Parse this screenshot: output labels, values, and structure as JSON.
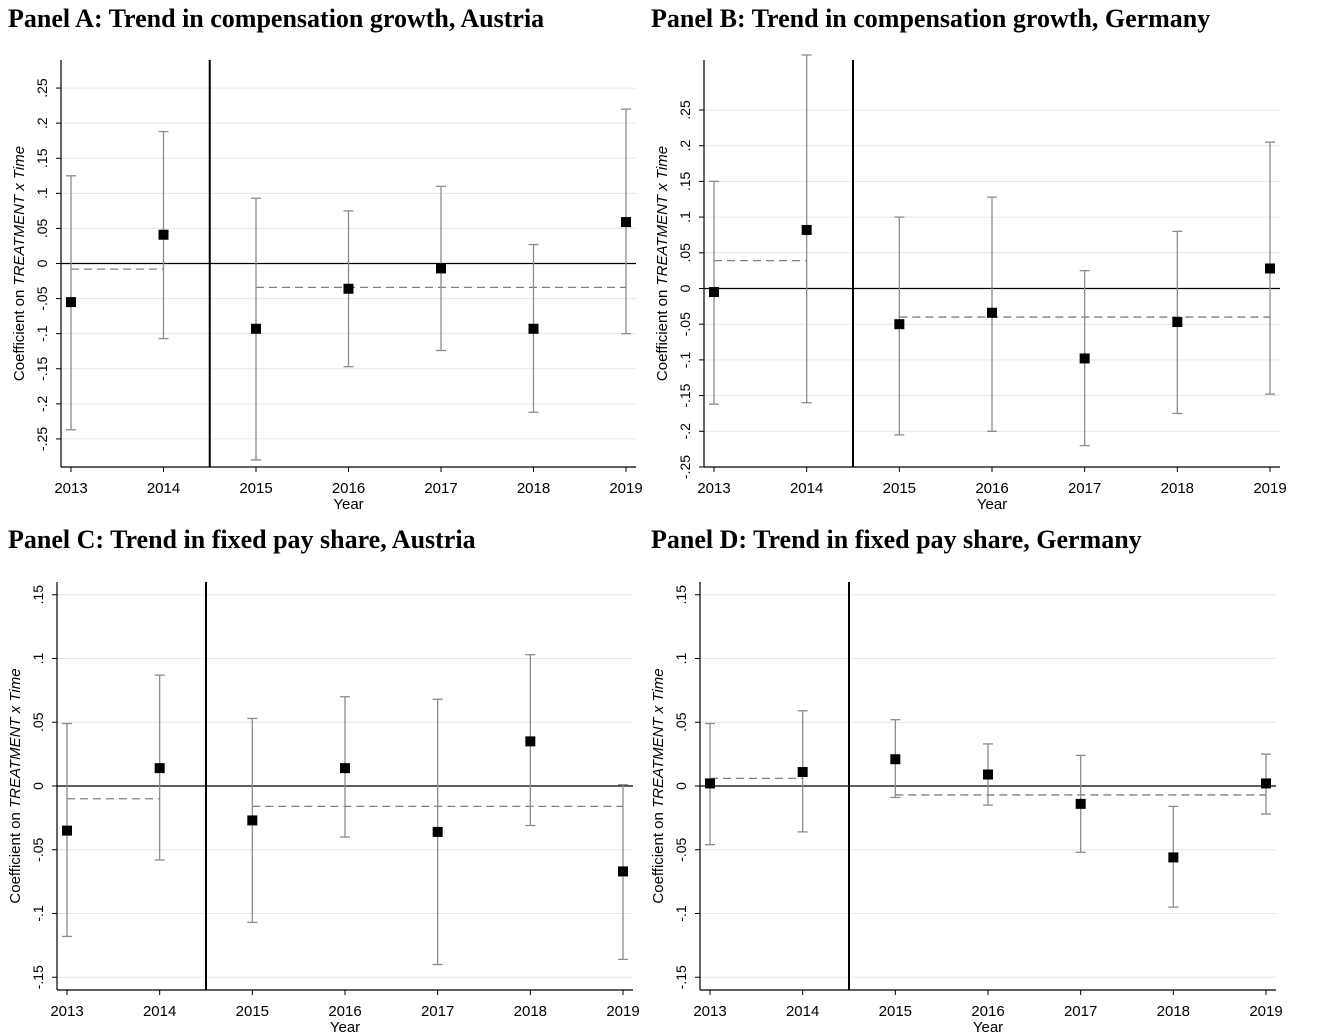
{
  "chart_data": [
    {
      "type": "scatter",
      "title": "Panel A: Trend in compensation growth, Austria",
      "xlabel": "Year",
      "ylabel_prefix": "Coefficient on ",
      "ylabel_italic": "TREATMENT x Time",
      "x": [
        2013,
        2014,
        2015,
        2016,
        2017,
        2018,
        2019
      ],
      "y_ticks": [
        "-.25",
        "-.2",
        "-.15",
        "-.1",
        "-.05",
        "0",
        ".05",
        ".1",
        ".15",
        ".2",
        ".25"
      ],
      "ylim": [
        -0.29,
        0.29
      ],
      "series": [
        {
          "values": [
            -0.055,
            0.041,
            -0.093,
            -0.036,
            -0.007,
            -0.093,
            0.059
          ],
          "ci_low": [
            -0.237,
            -0.107,
            -0.28,
            -0.147,
            -0.124,
            -0.212,
            -0.1
          ],
          "ci_high": [
            0.125,
            0.188,
            0.093,
            0.075,
            0.11,
            0.027,
            0.22
          ]
        }
      ],
      "pre_mean": -0.008,
      "post_mean": -0.034,
      "break_x": 2014.5,
      "grid": true
    },
    {
      "type": "scatter",
      "title": "Panel B: Trend in compensation growth, Germany",
      "xlabel": "Year",
      "ylabel_prefix": "Coefficient on ",
      "ylabel_italic": "TREATMENT x Time",
      "x": [
        2013,
        2014,
        2015,
        2016,
        2017,
        2018,
        2019
      ],
      "y_ticks": [
        "-.25",
        "-.2",
        "-.15",
        "-.1",
        "-.05",
        "0",
        ".05",
        ".1",
        ".15",
        ".2",
        ".25"
      ],
      "ylim": [
        -0.25,
        0.32
      ],
      "series": [
        {
          "values": [
            -0.005,
            0.082,
            -0.05,
            -0.034,
            -0.098,
            -0.047,
            0.028
          ],
          "ci_low": [
            -0.162,
            -0.16,
            -0.205,
            -0.2,
            -0.22,
            -0.175,
            -0.148
          ],
          "ci_high": [
            0.15,
            0.327,
            0.1,
            0.128,
            0.025,
            0.08,
            0.205
          ]
        }
      ],
      "pre_mean": 0.039,
      "post_mean": -0.04,
      "break_x": 2014.5,
      "grid": true
    },
    {
      "type": "scatter",
      "title": "Panel C: Trend in fixed pay share, Austria",
      "xlabel": "Year",
      "ylabel_prefix": "Coefficient on ",
      "ylabel_italic": "TREATMENT x Time",
      "x": [
        2013,
        2014,
        2015,
        2016,
        2017,
        2018,
        2019
      ],
      "y_ticks": [
        "-.15",
        "-.1",
        "-.05",
        "0",
        ".05",
        ".1",
        ".15"
      ],
      "ylim": [
        -0.16,
        0.16
      ],
      "series": [
        {
          "values": [
            -0.035,
            0.014,
            -0.027,
            0.014,
            -0.036,
            0.035,
            -0.067
          ],
          "ci_low": [
            -0.118,
            -0.058,
            -0.107,
            -0.04,
            -0.14,
            -0.031,
            -0.136
          ],
          "ci_high": [
            0.049,
            0.087,
            0.053,
            0.07,
            0.068,
            0.103,
            0.001
          ]
        }
      ],
      "pre_mean": -0.01,
      "post_mean": -0.016,
      "break_x": 2014.5,
      "grid": true
    },
    {
      "type": "scatter",
      "title": "Panel D: Trend in fixed pay share, Germany",
      "xlabel": "Year",
      "ylabel_prefix": "Coefficient on ",
      "ylabel_italic": "TREATMENT x Time",
      "x": [
        2013,
        2014,
        2015,
        2016,
        2017,
        2018,
        2019
      ],
      "y_ticks": [
        "-.15",
        "-.1",
        "-.05",
        "0",
        ".05",
        ".1",
        ".15"
      ],
      "ylim": [
        -0.16,
        0.16
      ],
      "series": [
        {
          "values": [
            0.002,
            0.011,
            0.021,
            0.009,
            -0.014,
            -0.056,
            0.002
          ],
          "ci_low": [
            -0.046,
            -0.036,
            -0.009,
            -0.015,
            -0.052,
            -0.095,
            -0.022
          ],
          "ci_high": [
            0.049,
            0.059,
            0.052,
            0.033,
            0.024,
            -0.016,
            0.025
          ]
        }
      ],
      "pre_mean": 0.006,
      "post_mean": -0.007,
      "break_x": 2014.5,
      "grid": true
    }
  ]
}
